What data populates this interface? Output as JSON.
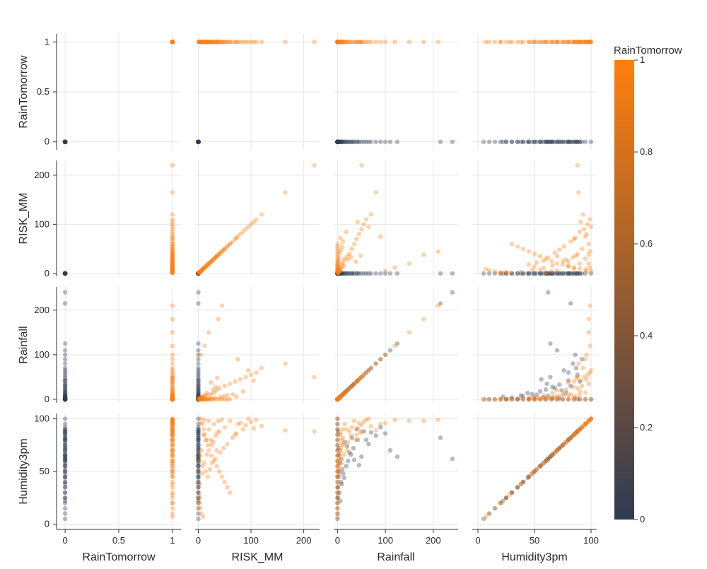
{
  "chart_data": {
    "type": "scatter",
    "subtype": "scatter-matrix",
    "dimensions": [
      {
        "key": "RainTomorrow",
        "label": "RainTomorrow",
        "range": [
          -0.08,
          1.08
        ],
        "ticks": [
          0,
          0.5,
          1
        ],
        "tick_labels": [
          "0",
          "0.5",
          "1"
        ]
      },
      {
        "key": "RISK_MM",
        "label": "RISK_MM",
        "range": [
          -6,
          230
        ],
        "ticks": [
          0,
          100,
          200
        ],
        "tick_labels": [
          "0",
          "100",
          "200"
        ]
      },
      {
        "key": "Rainfall",
        "label": "Rainfall",
        "range": [
          -8,
          252
        ],
        "ticks": [
          0,
          100,
          200
        ],
        "tick_labels": [
          "0",
          "100",
          "200"
        ]
      },
      {
        "key": "Humidity3pm",
        "label": "Humidity3pm",
        "range": [
          -5,
          105
        ],
        "ticks": [
          0,
          50,
          100
        ],
        "tick_labels": [
          "0",
          "50",
          "100"
        ]
      }
    ],
    "color_variable": "RainTomorrow",
    "colorbar": {
      "title": "RainTomorrow",
      "range": [
        0,
        1
      ],
      "ticks": [
        0,
        0.2,
        0.4,
        0.6,
        0.8,
        1
      ],
      "tick_labels": [
        "0",
        "0.2",
        "0.4",
        "0.6",
        "0.8",
        "1"
      ],
      "color_low": "#2f3b52",
      "color_high": "#ff7f0e"
    },
    "grid": true,
    "marker_opacity": 0.35,
    "points": [
      [
        0,
        0,
        0,
        100
      ],
      [
        0,
        0,
        0,
        95
      ],
      [
        0,
        0,
        0,
        90
      ],
      [
        0,
        0,
        0,
        85
      ],
      [
        0,
        0,
        0,
        80
      ],
      [
        0,
        0,
        0,
        75
      ],
      [
        0,
        0,
        0,
        70
      ],
      [
        0,
        0,
        0,
        65
      ],
      [
        0,
        0,
        0,
        60
      ],
      [
        0,
        0,
        0,
        55
      ],
      [
        0,
        0,
        0,
        50
      ],
      [
        0,
        0,
        0,
        45
      ],
      [
        0,
        0,
        0,
        40
      ],
      [
        0,
        0,
        0,
        35
      ],
      [
        0,
        0,
        0,
        30
      ],
      [
        0,
        0,
        0,
        25
      ],
      [
        0,
        0,
        0,
        20
      ],
      [
        0,
        0,
        0,
        15
      ],
      [
        0,
        0,
        0,
        10
      ],
      [
        0,
        0,
        0,
        5
      ],
      [
        0,
        0,
        1,
        88
      ],
      [
        0,
        0,
        2,
        72
      ],
      [
        0,
        0,
        3,
        66
      ],
      [
        0,
        0,
        5,
        58
      ],
      [
        0,
        0,
        8,
        62
      ],
      [
        0,
        0,
        10,
        52
      ],
      [
        0,
        0,
        12,
        48
      ],
      [
        0,
        0,
        15,
        78
      ],
      [
        0,
        0,
        20,
        74
      ],
      [
        0,
        0,
        25,
        68
      ],
      [
        0,
        0,
        30,
        82
      ],
      [
        0,
        0,
        35,
        61
      ],
      [
        0,
        0,
        40,
        90
      ],
      [
        0,
        0,
        45,
        56
      ],
      [
        0,
        0,
        50,
        64
      ],
      [
        0,
        0,
        60,
        80
      ],
      [
        0,
        0,
        70,
        87
      ],
      [
        0,
        0,
        80,
        84
      ],
      [
        0,
        0,
        90,
        92
      ],
      [
        0,
        0,
        100,
        86
      ],
      [
        0,
        0,
        110,
        70
      ],
      [
        0,
        0,
        125,
        64
      ],
      [
        0,
        0,
        215,
        82
      ],
      [
        0,
        0,
        240,
        62
      ],
      [
        0,
        0,
        4,
        30
      ],
      [
        0,
        0,
        6,
        22
      ],
      [
        0,
        0,
        9,
        38
      ],
      [
        0,
        0,
        14,
        44
      ],
      [
        0,
        0,
        18,
        55
      ],
      [
        0,
        0,
        22,
        60
      ],
      [
        0,
        0,
        28,
        66
      ],
      [
        0,
        0,
        33,
        72
      ],
      [
        0,
        0,
        42,
        80
      ],
      [
        0,
        0,
        55,
        88
      ],
      [
        0,
        0,
        65,
        76
      ],
      [
        0,
        0,
        2,
        45
      ],
      [
        0,
        0,
        1,
        35
      ],
      [
        0,
        0,
        0.5,
        25
      ],
      [
        0,
        0,
        3,
        50
      ],
      [
        0,
        0,
        7,
        40
      ],
      [
        1,
        5,
        0,
        100
      ],
      [
        1,
        8,
        0,
        95
      ],
      [
        1,
        10,
        0,
        90
      ],
      [
        1,
        12,
        0,
        85
      ],
      [
        1,
        15,
        0,
        80
      ],
      [
        1,
        18,
        0,
        75
      ],
      [
        1,
        20,
        0,
        70
      ],
      [
        1,
        25,
        0,
        65
      ],
      [
        1,
        30,
        0,
        60
      ],
      [
        1,
        35,
        0,
        55
      ],
      [
        1,
        40,
        0,
        50
      ],
      [
        1,
        45,
        0,
        45
      ],
      [
        1,
        50,
        0,
        40
      ],
      [
        1,
        55,
        0,
        35
      ],
      [
        1,
        60,
        0,
        30
      ],
      [
        1,
        3,
        0,
        25
      ],
      [
        1,
        2,
        0,
        20
      ],
      [
        1,
        4,
        0,
        15
      ],
      [
        1,
        6,
        0,
        10
      ],
      [
        1,
        9,
        0,
        7
      ],
      [
        1,
        10,
        5,
        85
      ],
      [
        1,
        15,
        8,
        80
      ],
      [
        1,
        20,
        10,
        90
      ],
      [
        1,
        25,
        12,
        75
      ],
      [
        1,
        30,
        15,
        95
      ],
      [
        1,
        35,
        20,
        70
      ],
      [
        1,
        40,
        25,
        88
      ],
      [
        1,
        50,
        30,
        92
      ],
      [
        1,
        60,
        35,
        98
      ],
      [
        1,
        70,
        40,
        85
      ],
      [
        1,
        80,
        45,
        96
      ],
      [
        1,
        90,
        50,
        94
      ],
      [
        1,
        100,
        55,
        97
      ],
      [
        1,
        110,
        60,
        99
      ],
      [
        1,
        120,
        70,
        93
      ],
      [
        1,
        165,
        80,
        89
      ],
      [
        1,
        220,
        50,
        88
      ],
      [
        1,
        5,
        100,
        96
      ],
      [
        1,
        12,
        120,
        99
      ],
      [
        1,
        20,
        150,
        98
      ],
      [
        1,
        38,
        180,
        98
      ],
      [
        1,
        45,
        210,
        99
      ],
      [
        1,
        75,
        90,
        95
      ],
      [
        1,
        95,
        65,
        100
      ],
      [
        1,
        105,
        42,
        91
      ],
      [
        1,
        2,
        2,
        60
      ],
      [
        1,
        4,
        4,
        65
      ],
      [
        1,
        6,
        6,
        70
      ],
      [
        1,
        8,
        3,
        55
      ],
      [
        1,
        14,
        1,
        50
      ],
      [
        1,
        18,
        0,
        45
      ],
      [
        1,
        22,
        2,
        52
      ],
      [
        1,
        26,
        1,
        58
      ],
      [
        1,
        32,
        3,
        62
      ],
      [
        1,
        42,
        5,
        68
      ],
      [
        1,
        48,
        7,
        72
      ],
      [
        1,
        55,
        9,
        76
      ],
      [
        1,
        65,
        11,
        82
      ],
      [
        1,
        72,
        6,
        86
      ],
      [
        1,
        85,
        18,
        90
      ],
      [
        1,
        28,
        22,
        78
      ],
      [
        1,
        33,
        28,
        84
      ],
      [
        1,
        16,
        14,
        66
      ],
      [
        1,
        11,
        9,
        58
      ],
      [
        1,
        7,
        5,
        48
      ],
      [
        1,
        3,
        3,
        38
      ],
      [
        1,
        1,
        1,
        28
      ],
      [
        1,
        0.5,
        0.2,
        20
      ],
      [
        1,
        24,
        38,
        80
      ],
      [
        1,
        36,
        48,
        87
      ]
    ]
  }
}
